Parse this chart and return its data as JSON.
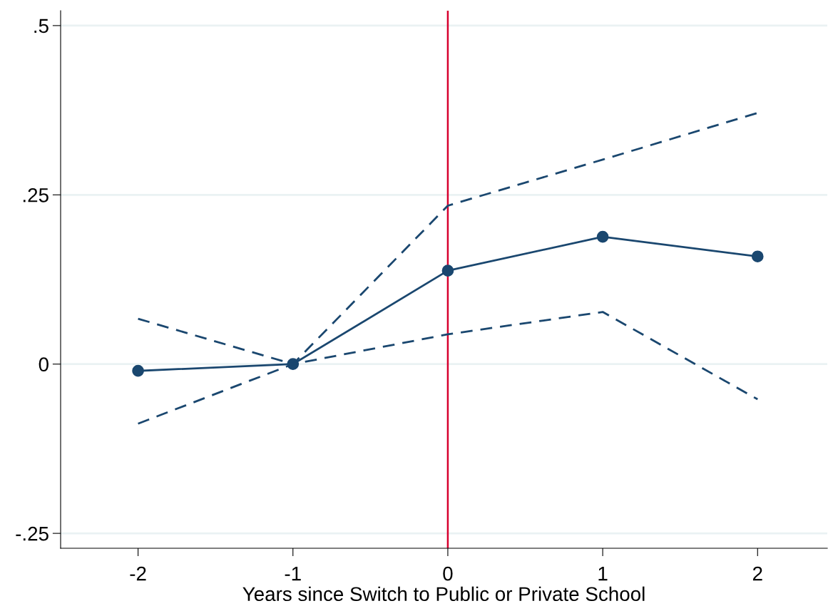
{
  "chart_data": {
    "type": "line",
    "xlabel": "Years since Switch to Public or Private School",
    "x": [
      -2,
      -1,
      0,
      1,
      2
    ],
    "series": [
      {
        "color": "#1a476f",
        "values": [
          -0.01,
          0,
          0.138,
          0.188,
          0.159
        ],
        "marker": "circle",
        "line_style": "solid"
      },
      {
        "color": "#1a476f",
        "values": [
          0.067,
          0,
          0.234,
          0.302,
          0.371
        ],
        "marker": "none",
        "line_style": "dashed"
      },
      {
        "color": "#1a476f",
        "values": [
          -0.088,
          0,
          0.044,
          0.077,
          -0.052
        ],
        "marker": "none",
        "line_style": "dashed"
      }
    ],
    "xlim": [
      -2.5,
      2.45
    ],
    "ylim": [
      -0.272,
      0.522
    ],
    "xticks": [
      -2,
      -1,
      0,
      1,
      2
    ],
    "yticks": [
      {
        "value": -0.25,
        "label": "-.25"
      },
      0,
      {
        "value": 0.25,
        "label": ".25"
      },
      {
        "value": 0.5,
        "label": ".5"
      }
    ],
    "ref_lines": [
      {
        "axis": "x",
        "value": 0,
        "color": "#d7002e",
        "line_style": "solid"
      }
    ],
    "grid": "y",
    "legend": false
  }
}
